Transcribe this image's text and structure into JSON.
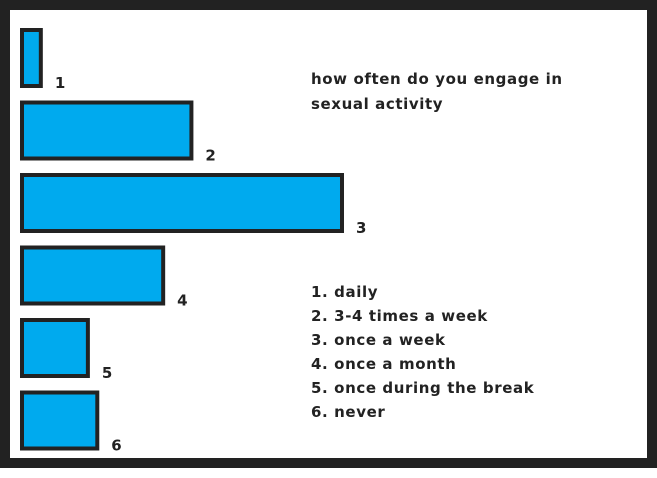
{
  "chart_data": {
    "type": "bar",
    "orientation": "horizontal",
    "title_lines": [
      "how often do you engage in",
      "sexual activity"
    ],
    "categories": [
      "1",
      "2",
      "3",
      "4",
      "5",
      "6"
    ],
    "values": [
      1,
      9,
      17,
      7.5,
      3.5,
      4
    ],
    "legend": [
      "1. daily",
      "2. 3-4 times a week",
      "3. once a week",
      "4. once a month",
      "5. once during the break",
      "6. never"
    ],
    "xlim": [
      0,
      17
    ],
    "grid": false,
    "legend_placement": "right",
    "bar_color": "#00aaee",
    "outline_color": "#222222"
  }
}
